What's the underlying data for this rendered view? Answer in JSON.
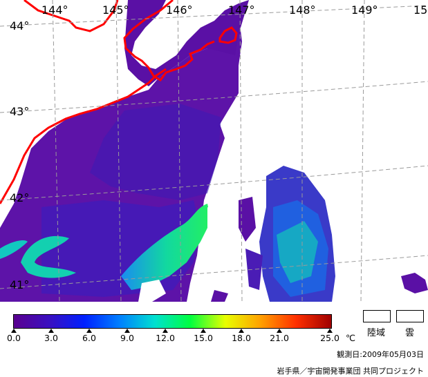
{
  "map": {
    "lon_labels": [
      "144°",
      "145°",
      "146°",
      "147°",
      "148°",
      "149°",
      "15"
    ],
    "lat_labels": [
      "44°",
      "43°",
      "42°",
      "41°"
    ]
  },
  "legend": {
    "ticks": [
      "0.0",
      "3.0",
      "6.0",
      "9.0",
      "12.0",
      "15.0",
      "18.0",
      "21.0",
      "25.0"
    ],
    "unit": "℃",
    "gradient_colors": [
      "#5a0090",
      "#3a10c0",
      "#0020ff",
      "#0080ff",
      "#00e0d0",
      "#00ff40",
      "#e8ff00",
      "#ffa000",
      "#ff3000",
      "#a00000"
    ],
    "land_label": "陸域",
    "cloud_label": "雲"
  },
  "observation_date": "観測日:2009年05月03日",
  "credit": "岩手県／宇宙開発事業団 共同プロジェクト",
  "colors": {
    "coastline": "#ff0000",
    "sea_dominant": "#5d13a8",
    "cloud": "#ffffff"
  }
}
